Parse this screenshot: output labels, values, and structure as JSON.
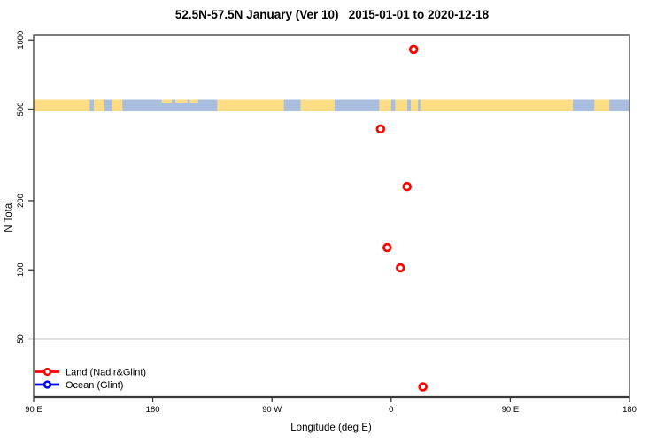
{
  "chart_data": {
    "type": "scatter",
    "title": "52.5N-57.5N January (Ver 10)   2015-01-01 to 2020-12-18",
    "xlabel": "Longitude (deg E)",
    "ylabel": "N Total",
    "x_axis": {
      "wrapped_longitude_axis": true,
      "span_axis_deg": [
        90,
        540
      ],
      "ticks": [
        {
          "axis_deg": 90,
          "label": "90 E"
        },
        {
          "axis_deg": 180,
          "label": "180"
        },
        {
          "axis_deg": 270,
          "label": "90 W"
        },
        {
          "axis_deg": 360,
          "label": "0"
        },
        {
          "axis_deg": 450,
          "label": "90 E"
        },
        {
          "axis_deg": 540,
          "label": "180"
        }
      ]
    },
    "y_axis": {
      "scale": "log",
      "ticks": [
        1000,
        500,
        200,
        100,
        50
      ],
      "range": [
        28,
        1050
      ]
    },
    "reference_line": {
      "value": 50,
      "color": "#8f8f8f"
    },
    "series": [
      {
        "name": "Land (Nadir&Glint)",
        "color": "#ff0000",
        "points": [
          {
            "lon": 17,
            "n": 910
          },
          {
            "lon": -8,
            "n": 410
          },
          {
            "lon": 12,
            "n": 230
          },
          {
            "lon": -3,
            "n": 125
          },
          {
            "lon": 7,
            "n": 102
          },
          {
            "lon": 24,
            "n": 31
          }
        ]
      },
      {
        "name": "Ocean (Glint)",
        "color": "#0000ff",
        "points": []
      }
    ],
    "map_band": {
      "center_value": 510,
      "land_color": "#fcdd86",
      "ocean_color": "#a9bede",
      "land_segments": [
        [
          0.0,
          0.094
        ],
        [
          0.101,
          0.119
        ],
        [
          0.131,
          0.149
        ],
        [
          0.308,
          0.42
        ],
        [
          0.448,
          0.505
        ],
        [
          0.58,
          0.6
        ],
        [
          0.607,
          0.627
        ],
        [
          0.633,
          0.645
        ],
        [
          0.649,
          0.905
        ],
        [
          0.941,
          0.966
        ]
      ],
      "land_specks": [
        [
          0.215,
          0.232
        ],
        [
          0.238,
          0.258
        ],
        [
          0.262,
          0.276
        ]
      ]
    },
    "legend": {
      "items": [
        {
          "label": "Land (Nadir&Glint)",
          "color": "#ff0000"
        },
        {
          "label": "Ocean (Glint)",
          "color": "#0000ff"
        }
      ]
    }
  }
}
